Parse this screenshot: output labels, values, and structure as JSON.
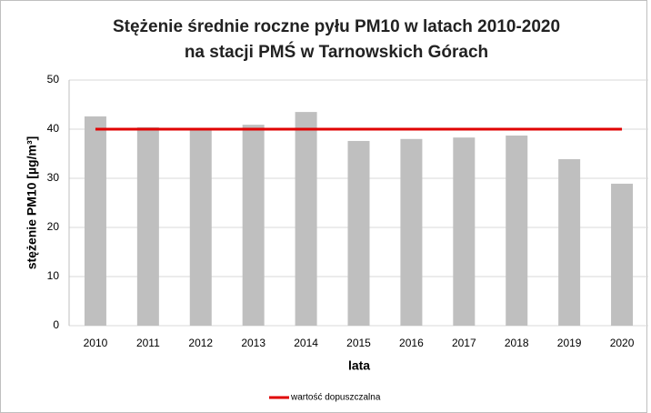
{
  "chart_data": {
    "type": "bar",
    "title": [
      "Stężenie średnie roczne pyłu PM10 w latach 2010-2020",
      "na stacji PMŚ w Tarnowskich Górach"
    ],
    "y_label": "stężenie  PM10 [µg/m³]",
    "x_label": "lata",
    "categories": [
      "2010",
      "2011",
      "2012",
      "2013",
      "2014",
      "2015",
      "2016",
      "2017",
      "2018",
      "2019",
      "2020"
    ],
    "values": [
      42.6,
      40.4,
      40.2,
      40.9,
      43.5,
      37.6,
      38.0,
      38.3,
      38.7,
      33.9,
      28.9
    ],
    "color": "#bfbfbf",
    "series": [
      {
        "name": "wartość dopuszczalna",
        "color": "#e00000",
        "type": "line",
        "values": [
          40,
          40,
          40,
          40,
          40,
          40,
          40,
          40,
          40,
          40,
          40
        ]
      }
    ],
    "ylim": [
      0,
      50
    ],
    "yticks": [
      0,
      10,
      20,
      30,
      40,
      50
    ],
    "grid": true,
    "legend": "bottom"
  }
}
